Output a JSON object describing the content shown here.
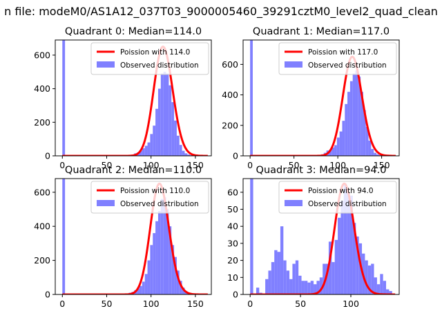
{
  "figure": {
    "suptitle": "n file: modeM0/AS1A12_037T03_9000005460_39291cztM0_level2_quad_clean",
    "colors": {
      "bars": "#8080ff",
      "poisson": "#ff0000",
      "axis": "#000000"
    }
  },
  "chart_data": [
    {
      "type": "bar",
      "title": "Quadrant 0: Median=114.0",
      "xlim": [
        -8,
        168
      ],
      "ylim": [
        0,
        690
      ],
      "xticks": [
        0,
        50,
        100,
        150
      ],
      "yticks": [
        0,
        200,
        400,
        600
      ],
      "bin_width": 3,
      "legend": {
        "placement": "top-right",
        "entries": [
          "Poission with 114.0",
          "Observed distribution"
        ]
      },
      "series": [
        {
          "name": "Observed distribution",
          "kind": "histogram",
          "x": [
            0,
            78,
            81,
            84,
            87,
            90,
            93,
            96,
            99,
            102,
            105,
            108,
            111,
            114,
            117,
            120,
            123,
            126,
            129,
            132,
            135,
            138,
            141,
            144,
            147
          ],
          "values": [
            690,
            5,
            15,
            20,
            30,
            45,
            60,
            80,
            130,
            180,
            280,
            400,
            490,
            500,
            490,
            420,
            320,
            210,
            120,
            65,
            30,
            15,
            8,
            4,
            2
          ]
        },
        {
          "name": "Poission with 114.0",
          "kind": "poisson",
          "mu": 114.0,
          "peak": 650
        }
      ]
    },
    {
      "type": "bar",
      "title": "Quadrant 1: Median=117.0",
      "xlim": [
        -8,
        170
      ],
      "ylim": [
        0,
        760
      ],
      "xticks": [
        0,
        50,
        100,
        150
      ],
      "yticks": [
        0,
        200,
        400,
        600
      ],
      "bin_width": 3,
      "legend": {
        "placement": "top-right",
        "entries": [
          "Poission with 117.0",
          "Observed distribution"
        ]
      },
      "series": [
        {
          "name": "Observed distribution",
          "kind": "histogram",
          "x": [
            0,
            81,
            84,
            87,
            90,
            93,
            96,
            99,
            102,
            105,
            108,
            111,
            114,
            117,
            120,
            123,
            126,
            129,
            132,
            135,
            138,
            141,
            144,
            147,
            150
          ],
          "values": [
            760,
            10,
            20,
            35,
            40,
            55,
            70,
            120,
            160,
            230,
            340,
            420,
            490,
            540,
            560,
            520,
            420,
            300,
            190,
            100,
            45,
            20,
            10,
            5,
            2
          ]
        },
        {
          "name": "Poission with 117.0",
          "kind": "poisson",
          "mu": 117.0,
          "peak": 650
        }
      ]
    },
    {
      "type": "bar",
      "title": "Quadrant 2: Median=110.0",
      "xlim": [
        -8,
        168
      ],
      "ylim": [
        0,
        680
      ],
      "xticks": [
        0,
        50,
        100,
        150
      ],
      "yticks": [
        0,
        200,
        400,
        600
      ],
      "bin_width": 3,
      "legend": {
        "placement": "top-right",
        "entries": [
          "Poission with 110.0",
          "Observed distribution"
        ]
      },
      "series": [
        {
          "name": "Observed distribution",
          "kind": "histogram",
          "x": [
            0,
            72,
            75,
            78,
            81,
            84,
            87,
            90,
            93,
            96,
            99,
            102,
            105,
            108,
            111,
            114,
            117,
            120,
            123,
            126,
            129,
            132,
            135,
            138,
            141,
            144
          ],
          "values": [
            680,
            5,
            10,
            15,
            25,
            35,
            50,
            75,
            120,
            200,
            290,
            360,
            430,
            490,
            560,
            570,
            500,
            400,
            290,
            220,
            140,
            80,
            40,
            20,
            10,
            5
          ]
        },
        {
          "name": "Poission with 110.0",
          "kind": "poisson",
          "mu": 110.0,
          "peak": 650
        }
      ]
    },
    {
      "type": "bar",
      "title": "Quadrant 3: Median=94.0",
      "xlim": [
        -7,
        148
      ],
      "ylim": [
        0,
        68
      ],
      "xticks": [
        0,
        50,
        100
      ],
      "yticks": [
        0,
        10,
        20,
        30,
        40,
        50,
        60
      ],
      "bin_width": 3,
      "legend": {
        "placement": "top-right",
        "entries": [
          "Poission with 94.0",
          "Observed distribution"
        ]
      },
      "series": [
        {
          "name": "Observed distribution",
          "kind": "histogram",
          "x": [
            0,
            6,
            9,
            15,
            18,
            21,
            24,
            27,
            30,
            33,
            36,
            39,
            42,
            45,
            48,
            51,
            54,
            57,
            60,
            63,
            66,
            69,
            72,
            75,
            78,
            81,
            84,
            87,
            90,
            93,
            96,
            99,
            102,
            105,
            108,
            111,
            114,
            117,
            120,
            123,
            126,
            129,
            132,
            135,
            138
          ],
          "values": [
            68,
            4,
            1,
            9,
            14,
            19,
            26,
            25,
            40,
            20,
            14,
            9,
            18,
            20,
            11,
            8,
            8,
            7,
            8,
            6,
            8,
            10,
            18,
            18,
            31,
            19,
            32,
            45,
            55,
            65,
            60,
            58,
            42,
            34,
            30,
            24,
            20,
            17,
            18,
            10,
            6,
            12,
            8,
            3,
            2
          ]
        },
        {
          "name": "Poission with 94.0",
          "kind": "poisson",
          "mu": 94.0,
          "peak": 65
        }
      ]
    }
  ]
}
